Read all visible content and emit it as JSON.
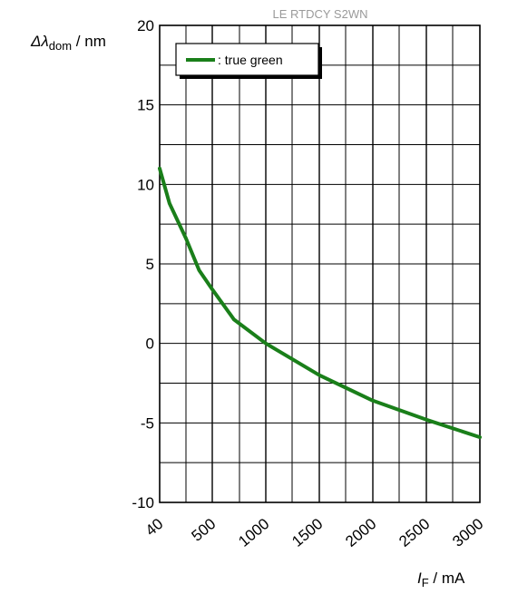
{
  "chart_data": {
    "type": "line",
    "watermark": "LE RTDCY S2WN",
    "ylabel": {
      "symbol": "Δλ",
      "sub": "dom",
      "unit": " / nm"
    },
    "xlabel": {
      "symbol": "I",
      "sub": "F",
      "unit": " / mA"
    },
    "y_ticks": [
      "20",
      "15",
      "10",
      "5",
      "0",
      "-5",
      "-10"
    ],
    "x_ticks": [
      "40",
      "500",
      "1000",
      "1500",
      "2000",
      "2500",
      "3000"
    ],
    "ylim": [
      -10,
      20
    ],
    "grid": true,
    "legend_position": "top-left",
    "series": [
      {
        "name": ": true green",
        "color": "#1a7f1a",
        "points": [
          {
            "x": 40,
            "y": 11.0
          },
          {
            "x": 100,
            "y": 8.8
          },
          {
            "x": 200,
            "y": 6.6
          },
          {
            "x": 350,
            "y": 4.6
          },
          {
            "x": 500,
            "y": 3.4
          },
          {
            "x": 700,
            "y": 1.5
          },
          {
            "x": 1000,
            "y": 0.0
          },
          {
            "x": 1500,
            "y": -2.0
          },
          {
            "x": 2000,
            "y": -3.6
          },
          {
            "x": 2500,
            "y": -4.8
          },
          {
            "x": 3000,
            "y": -5.9
          }
        ]
      }
    ]
  }
}
